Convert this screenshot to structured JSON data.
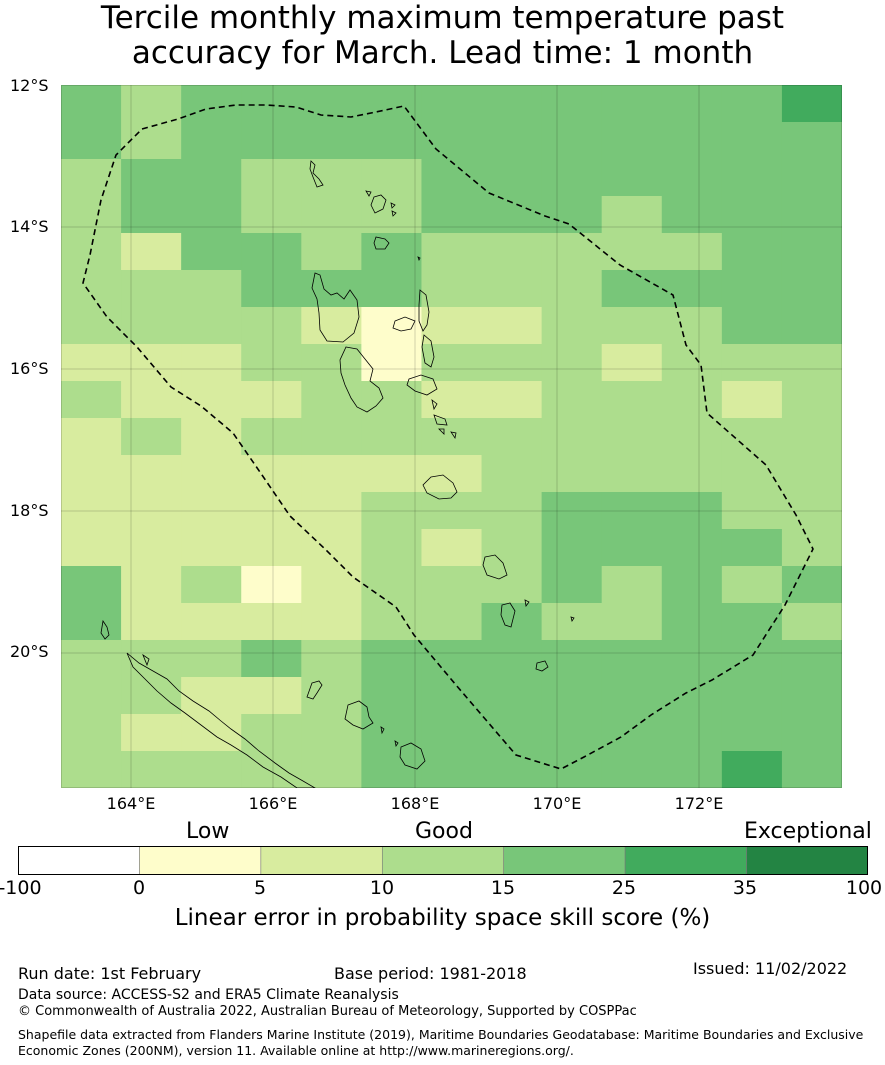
{
  "title": {
    "line1": "Tercile monthly maximum temperature past",
    "line2": "accuracy for March. Lead time: 1 month"
  },
  "map": {
    "lat_labels": [
      "12°S",
      "14°S",
      "16°S",
      "18°S",
      "20°S"
    ],
    "lon_labels": [
      "164°E",
      "166°E",
      "168°E",
      "170°E",
      "172°E"
    ]
  },
  "colorbar": {
    "categories": [
      "Low",
      "Good",
      "Exceptional"
    ],
    "ticks": [
      "-100",
      "0",
      "5",
      "10",
      "15",
      "25",
      "35",
      "100"
    ],
    "colors": [
      "#ffffff",
      "#fefdcb",
      "#d8ec9f",
      "#addd8d",
      "#78c679",
      "#41ab5d",
      "#238443"
    ],
    "label": "Linear error in probability space skill score (%)"
  },
  "grid_values": [
    [
      4,
      3,
      4,
      4,
      4,
      4,
      4,
      4,
      4,
      4,
      4,
      4,
      5
    ],
    [
      4,
      3,
      4,
      4,
      4,
      4,
      4,
      4,
      4,
      4,
      4,
      4,
      4
    ],
    [
      3,
      4,
      4,
      3,
      3,
      3,
      4,
      4,
      4,
      4,
      4,
      4,
      4
    ],
    [
      3,
      4,
      4,
      3,
      3,
      3,
      4,
      4,
      4,
      3,
      4,
      4,
      4
    ],
    [
      3,
      2,
      4,
      4,
      3,
      4,
      3,
      3,
      3,
      3,
      3,
      4,
      4
    ],
    [
      3,
      3,
      3,
      4,
      4,
      4,
      3,
      3,
      3,
      4,
      4,
      4,
      4
    ],
    [
      3,
      3,
      3,
      3,
      2,
      1,
      2,
      2,
      3,
      3,
      3,
      4,
      4
    ],
    [
      2,
      2,
      2,
      3,
      3,
      1,
      3,
      3,
      3,
      2,
      3,
      3,
      3
    ],
    [
      3,
      2,
      2,
      2,
      3,
      3,
      2,
      2,
      3,
      3,
      3,
      2,
      3
    ],
    [
      2,
      3,
      2,
      3,
      3,
      3,
      3,
      3,
      3,
      3,
      3,
      3,
      3
    ],
    [
      2,
      2,
      2,
      2,
      2,
      2,
      2,
      3,
      3,
      3,
      3,
      3,
      3
    ],
    [
      2,
      2,
      2,
      2,
      2,
      3,
      3,
      3,
      4,
      4,
      4,
      3,
      3
    ],
    [
      2,
      2,
      2,
      2,
      2,
      3,
      2,
      3,
      4,
      4,
      4,
      4,
      3
    ],
    [
      4,
      2,
      3,
      1,
      2,
      3,
      3,
      3,
      4,
      3,
      4,
      3,
      4
    ],
    [
      4,
      2,
      2,
      2,
      2,
      3,
      3,
      4,
      3,
      3,
      4,
      4,
      3
    ],
    [
      3,
      3,
      3,
      4,
      3,
      4,
      4,
      4,
      4,
      4,
      4,
      4,
      4
    ],
    [
      3,
      3,
      2,
      2,
      3,
      4,
      4,
      4,
      4,
      4,
      4,
      4,
      4
    ],
    [
      3,
      2,
      2,
      3,
      3,
      4,
      4,
      4,
      4,
      4,
      4,
      4,
      4
    ],
    [
      3,
      3,
      3,
      3,
      3,
      4,
      4,
      4,
      4,
      4,
      4,
      5,
      4
    ]
  ],
  "footer": {
    "run_date": "Run date: 1st February",
    "base_period": "Base period: 1981-2018",
    "issued": "Issued: 11/02/2022",
    "data_source": "Data source: ACCESS-S2 and ERA5 Climate Reanalysis",
    "copyright": "© Commonwealth of Australia 2022, Australian Bureau of Meteorology, Supported by COSPPac",
    "shapefile": "Shapefile data extracted from Flanders Marine Institute (2019), Maritime Boundaries Geodatabase: Maritime Boundaries and Exclusive Economic Zones (200NM), version 11. Available online at http://www.marineregions.org/."
  }
}
